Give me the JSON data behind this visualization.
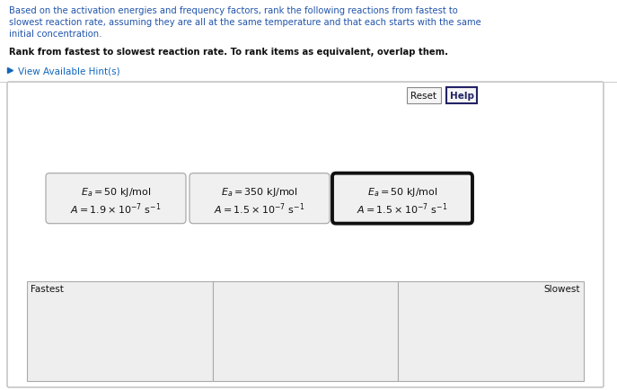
{
  "background_color": "#ffffff",
  "outer_box_edge": "#bbbbbb",
  "card_bg": "#f0f0f0",
  "card_border_normal": "#aaaaaa",
  "card_border_thick": "#111111",
  "slot_bg": "#eeeeee",
  "slot_border": "#aaaaaa",
  "text_blue": "#2255aa",
  "text_orange": "#cc6600",
  "text_black": "#111111",
  "text_hint_blue": "#1166bb",
  "button_bg": "#f5f5f5",
  "button_border": "#888888",
  "help_border": "#222266",
  "help_text": "#222266",
  "title_lines": [
    "Based on the activation energies and frequency factors, rank the following reactions from fastest to",
    "slowest reaction rate, assuming they are all at the same temperature and that each starts with the same",
    "initial concentration."
  ],
  "rank_line": "Rank from fastest to slowest reaction rate. To rank items as equivalent, overlap them.",
  "hint_text": "View Available Hint(s)",
  "reset_label": "Reset",
  "help_label": "Help",
  "cards": [
    {
      "ea_line": "$E_a = 50\\ \\mathrm{kJ/mol}$",
      "a_line": "$A = 1.9 \\times 10^{-7}\\ \\mathrm{s}^{-1}$",
      "thick": false
    },
    {
      "ea_line": "$E_a = 350\\ \\mathrm{kJ/mol}$",
      "a_line": "$A = 1.5 \\times 10^{-7}\\ \\mathrm{s}^{-1}$",
      "thick": false
    },
    {
      "ea_line": "$E_a = 50\\ \\mathrm{kJ/mol}$",
      "a_line": "$A = 1.5 \\times 10^{-7}\\ \\mathrm{s}^{-1}$",
      "thick": true
    }
  ],
  "slot_labels": [
    "Fastest",
    "",
    "Slowest"
  ],
  "figsize": [
    6.87,
    4.35
  ],
  "dpi": 100
}
